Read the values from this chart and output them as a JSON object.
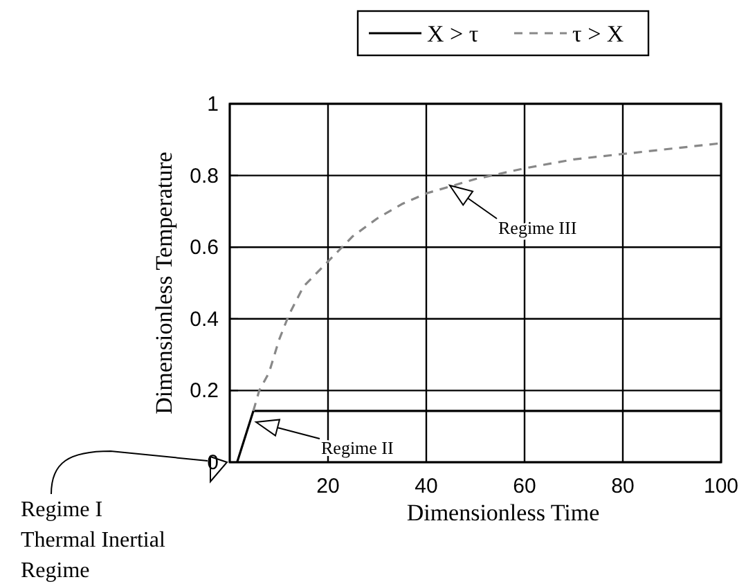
{
  "chart_data": {
    "type": "line",
    "xlabel": "Dimensionless Time",
    "ylabel": "Dimensionless Temperature",
    "xlim": [
      0,
      100
    ],
    "ylim": [
      0,
      1
    ],
    "xticks": [
      {
        "value": 0,
        "label": null
      },
      20,
      40,
      60,
      80,
      100
    ],
    "yticks": [
      0,
      0.2,
      0.4,
      0.6,
      0.8,
      1
    ],
    "grid": true,
    "legend": "top",
    "series": [
      {
        "name": "X > τ",
        "color": "#000000",
        "line_style": "solid",
        "x": [
          1.5,
          4.8,
          100
        ],
        "values": [
          0,
          0.143,
          0.143
        ]
      },
      {
        "name": "τ > X",
        "color": "#888888",
        "line_style": "dashed",
        "x": [
          4.8,
          6,
          8,
          10,
          12,
          15,
          20,
          25,
          30,
          35,
          40,
          45,
          50,
          60,
          70,
          80,
          90,
          100
        ],
        "values": [
          0.143,
          0.2,
          0.25,
          0.34,
          0.41,
          0.49,
          0.56,
          0.63,
          0.68,
          0.72,
          0.75,
          0.77,
          0.79,
          0.82,
          0.845,
          0.86,
          0.875,
          0.89
        ]
      }
    ],
    "annotations": [
      "Regime I\nThermal Inertial\nRegime",
      "Regime II",
      "Regime III"
    ]
  }
}
